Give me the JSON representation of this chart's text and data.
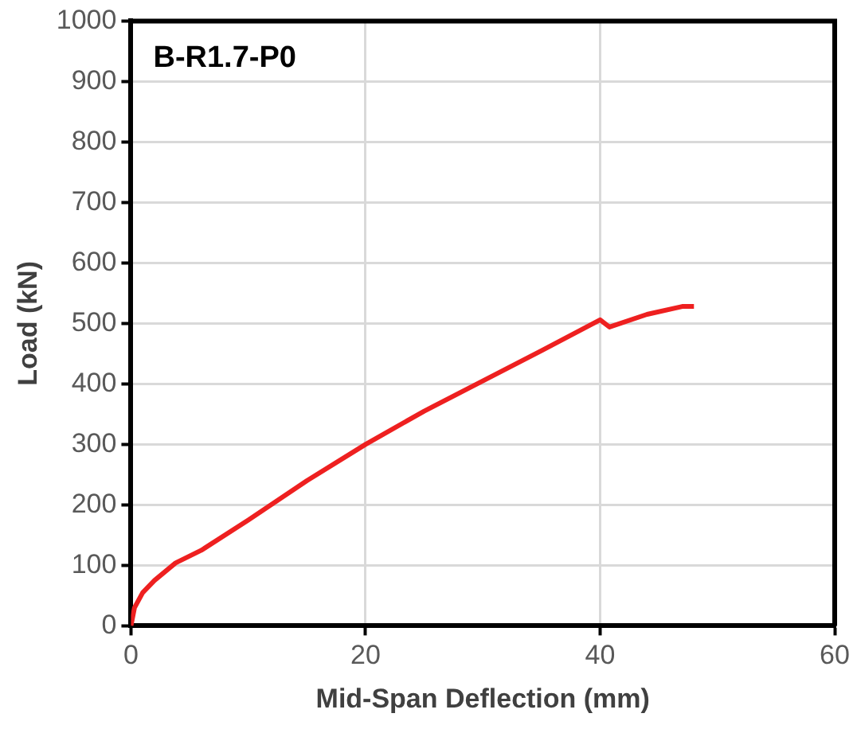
{
  "chart_data": {
    "type": "line",
    "annotations": [
      "B-R1.7-P0"
    ],
    "xlabel": "Mid-Span Deflection (mm)",
    "ylabel": "Load (kN)",
    "x": [
      0,
      0.3,
      1,
      2,
      3.8,
      6,
      10,
      15,
      20,
      25,
      30,
      35,
      40,
      40.8,
      44,
      47,
      48
    ],
    "series": [
      {
        "color": "#ee2020",
        "values": [
          0,
          30,
          55,
          75,
          104,
          125,
          175,
          240,
          300,
          355,
          405,
          455,
          506,
          494,
          515,
          528,
          528
        ]
      }
    ],
    "xlim": [
      0,
      60
    ],
    "xticks": [
      0,
      20,
      40,
      60
    ],
    "ylim": [
      0,
      1000
    ],
    "yticks": [
      0,
      100,
      200,
      300,
      400,
      500,
      600,
      700,
      800,
      900,
      1000
    ],
    "grid": true,
    "legend": false,
    "marker": "none"
  }
}
